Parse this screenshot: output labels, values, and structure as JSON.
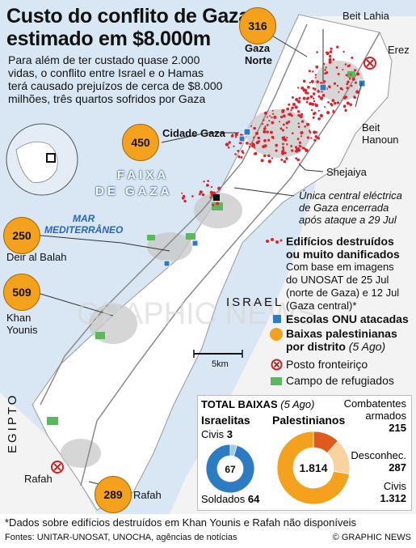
{
  "title_line1": "Custo do conflito de Gaza",
  "title_line2": "estimado em $8.000m",
  "subtitle": "Para além de ter custado quase 2.000 vidas, o conflito entre Israel e o Hamas terá causado prejuízos de cerca de $8.000 milhões, três quartos sofridos por Gaza",
  "places": {
    "beit_lahia": "Beit Lahia",
    "erez": "Erez",
    "beit_hanoun_1": "Beit",
    "beit_hanoun_2": "Hanoun",
    "shejaiya": "Shejaiya",
    "cidade_gaza": "Cidade Gaza",
    "gaza_norte_1": "Gaza",
    "gaza_norte_2": "Norte",
    "deir_al_balah": "Deir al Balah",
    "khan_younis_1": "Khan",
    "khan_younis_2": "Younis",
    "rafah_west": "Rafah",
    "rafah_east": "Rafah",
    "israel": "ISRAEL",
    "egipto": "EGIPTO",
    "faixa_1": "FAIXA",
    "faixa_2": "DE GAZA",
    "mar_1": "MAR",
    "mar_2": "MEDITERRÂNEO"
  },
  "district_casualties": {
    "gaza_norte": "316",
    "cidade_gaza": "450",
    "deir_al_balah": "250",
    "khan_younis": "509",
    "rafah": "289"
  },
  "power_plant_note": [
    "Única central eléctrica",
    "de Gaza encerrada",
    "após ataque a 29 Jul"
  ],
  "scale_label": "5km",
  "watermark": "GRAPHIC NEWS",
  "legend": {
    "destroyed_title_1": "Edifícios destruídos",
    "destroyed_title_2": "ou muito danificados",
    "destroyed_note": [
      "Com base em imagens",
      "do UNOSAT de 25 Jul",
      "(norte de Gaza) e 12 Jul",
      "(Gaza central)*"
    ],
    "schools": "Escolas ONU atacadas",
    "district_title_1": "Baixas palestinianas",
    "district_title_2": "por distrito",
    "district_date": "(5 Ago)",
    "crossing": "Posto fronteiriço",
    "camp": "Campo de refugiados"
  },
  "casualties_box": {
    "title": "TOTAL BAIXAS",
    "date": "(5 Ago)",
    "israelis_label": "Israelitas",
    "israelis_total": "67",
    "civis_label": "Civis",
    "civis_israel": "3",
    "soldados_label": "Soldados",
    "soldados": "64",
    "palestinians_label": "Palestinianos",
    "palestinians_total": "1.814",
    "combatants_label_1": "Combatentes",
    "combatants_label_2": "armados",
    "combatants": "215",
    "unknown_label": "Desconhec.",
    "unknown": "287",
    "civis_pal_label": "Civis",
    "civis_pal": "1.312"
  },
  "chart_data": [
    {
      "type": "pie",
      "title": "Israelitas",
      "categories": [
        "Civis",
        "Soldados"
      ],
      "values": [
        3,
        64
      ],
      "colors": [
        "#9ec7e8",
        "#2c7cc4"
      ]
    },
    {
      "type": "pie",
      "title": "Palestinianos",
      "categories": [
        "Combatentes armados",
        "Desconhec.",
        "Civis"
      ],
      "values": [
        215,
        287,
        1312
      ],
      "colors": [
        "#e05a1e",
        "#f8d3a0",
        "#f4a21e"
      ]
    }
  ],
  "footnote": "*Dados sobre edifícios destruídos em Khan Younis e Rafah não disponíveis",
  "sources": "Fontes: UNITAR-UNOSAT, UNOCHA, agências de notícias",
  "credit": "© GRAPHIC NEWS",
  "colors": {
    "sea": "#d9e6f3",
    "land": "#f2f2f2",
    "gaza_strip": "#ffffff",
    "destroyed": "#e0202a",
    "school": "#2c7cc4",
    "badge": "#f4a21e",
    "camp": "#5cb85c"
  },
  "icons": [
    "globe-icon",
    "crossing-icon",
    "school-icon",
    "camp-icon",
    "power-plant-icon"
  ]
}
